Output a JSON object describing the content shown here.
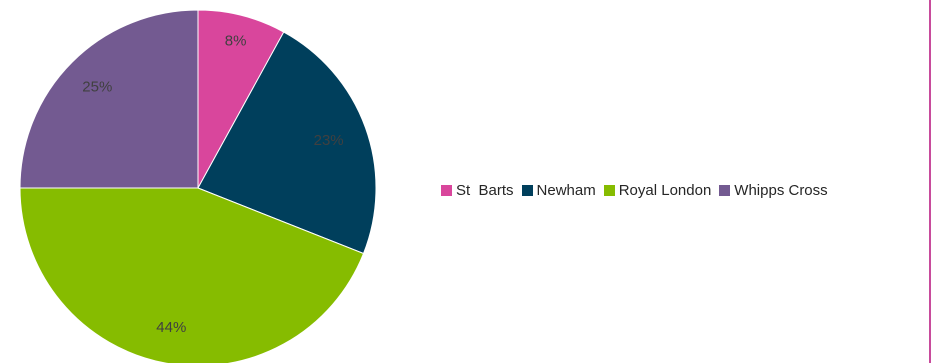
{
  "chart_data": {
    "type": "pie",
    "title": "",
    "legend_position": "right",
    "slices": [
      {
        "name": "St  Barts",
        "value": 8,
        "label": "8%",
        "color": "#d9469c"
      },
      {
        "name": "Newham",
        "value": 23,
        "label": "23%",
        "color": "#003f5c"
      },
      {
        "name": "Royal London",
        "value": 44,
        "label": "44%",
        "color": "#86bc00"
      },
      {
        "name": "Whipps Cross",
        "value": 25,
        "label": "25%",
        "color": "#735a91"
      }
    ]
  },
  "colors": {
    "frame_accent": "#c84b9c"
  }
}
